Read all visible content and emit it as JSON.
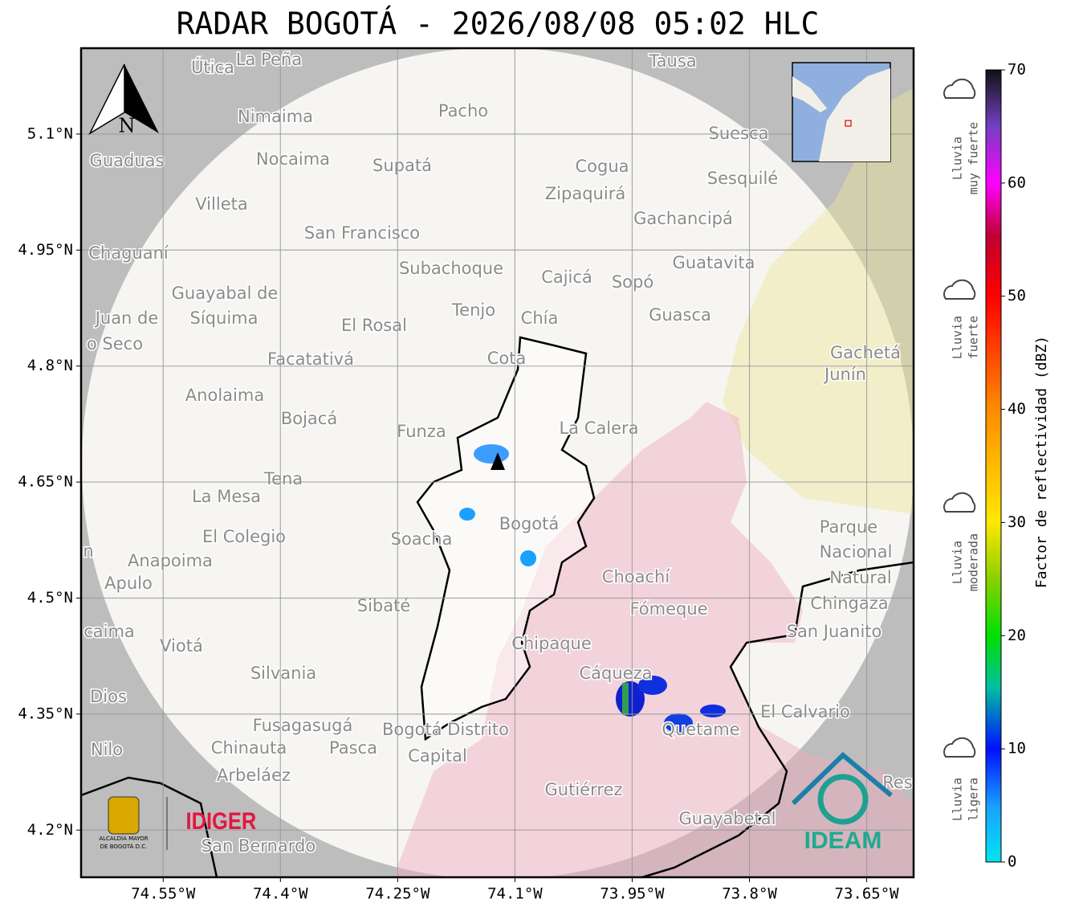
{
  "header": {
    "title": "RADAR BOGOTÁ - 2026/08/08 05:02 HLC"
  },
  "map": {
    "xlim": [
      -74.655,
      -73.59
    ],
    "ylim": [
      4.139,
      5.211
    ],
    "xticks": [
      {
        "value": -74.55,
        "label": "74.55°W"
      },
      {
        "value": -74.4,
        "label": "74.4°W"
      },
      {
        "value": -74.25,
        "label": "74.25°W"
      },
      {
        "value": -74.1,
        "label": "74.1°W"
      },
      {
        "value": -73.95,
        "label": "73.95°W"
      },
      {
        "value": -73.8,
        "label": "73.8°W"
      },
      {
        "value": -73.65,
        "label": "73.65°W"
      }
    ],
    "yticks": [
      {
        "value": 5.1,
        "label": "5.1°N"
      },
      {
        "value": 4.95,
        "label": "4.95°N"
      },
      {
        "value": 4.8,
        "label": "4.8°N"
      },
      {
        "value": 4.65,
        "label": "4.65°N"
      },
      {
        "value": 4.5,
        "label": "4.5°N"
      },
      {
        "value": 4.35,
        "label": "4.35°N"
      },
      {
        "value": 4.2,
        "label": "4.2°N"
      }
    ],
    "grid": true,
    "north": "N",
    "places": [
      "Útica",
      "La Peña",
      "Tausa",
      "Pacho",
      "Nimaima",
      "Guaduas",
      "Nocaima",
      "Supatá",
      "Cogua",
      "Suesca",
      "Sesquilé",
      "Villeta",
      "Zipaquirá",
      "Gachancipá",
      "San Francisco",
      "Chaguaní",
      "Guatavita",
      "Subachoque",
      "Cajicá",
      "Sopó",
      "Guayabal de",
      "Síquima",
      "Juan de",
      "Tenjo",
      "Chía",
      "Guasca",
      "El Rosal",
      "o Seco",
      "Facatativá",
      "Cota",
      "Gachetá",
      "Junín",
      "Anolaima",
      "Bojacá",
      "Funza",
      "La Calera",
      "Tena",
      "La Mesa",
      "Bogotá",
      "El Colegio",
      "Soacha",
      "Parque",
      "Nacional",
      "Natural",
      "Chingaza",
      "Anapoima",
      "n",
      "Apulo",
      "Choachí",
      "Sibaté",
      "Fómeque",
      "San Juanito",
      "caima",
      "Viotá",
      "Chipaque",
      "Silvania",
      "Cáqueza",
      "Dios",
      "El Calvario",
      "Quetame",
      "Fusagasugá",
      "Bogotá Distrito",
      "Capital",
      "Nilo",
      "Chinauta",
      "Pasca",
      "Arbeláez",
      "Gutiérrez",
      "Res",
      "Guayabetal",
      "San Bernardo"
    ]
  },
  "logos": {
    "alcaldia": [
      "ALCALDÍA MAYOR",
      "DE BOGOTÁ D.C."
    ],
    "idiger": "IDIGER",
    "ideam": "IDEAM"
  },
  "colorbar": {
    "label": "Factor de reflectividad (dBZ)",
    "lim": [
      0,
      70
    ],
    "ticks": [
      0,
      10,
      20,
      30,
      40,
      50,
      60,
      70
    ],
    "classes": [
      [
        "Lluvia",
        "muy fuerte"
      ],
      [
        "Lluvia",
        "fuerte"
      ],
      [
        "Lluvia",
        "moderada"
      ],
      [
        "Lluvia",
        "ligera"
      ]
    ]
  }
}
